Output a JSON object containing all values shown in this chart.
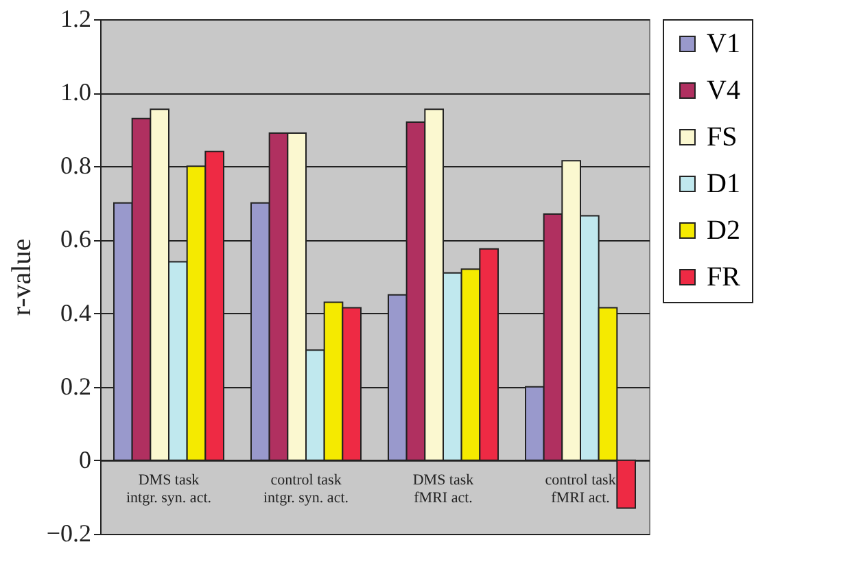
{
  "chart_data": {
    "type": "bar",
    "ylabel": "r-value",
    "categories": [
      "DMS task\nintgr. syn. act.",
      "control task\nintgr. syn. act.",
      "DMS task\nfMRI act.",
      "control task\nfMRI act."
    ],
    "series": [
      {
        "name": "V1",
        "color": "#9999cc",
        "values": [
          0.7,
          0.7,
          0.45,
          0.2
        ]
      },
      {
        "name": "V4",
        "color": "#b03060",
        "values": [
          0.93,
          0.89,
          0.92,
          0.67
        ]
      },
      {
        "name": "FS",
        "color": "#fbf8d0",
        "values": [
          0.955,
          0.89,
          0.955,
          0.815
        ]
      },
      {
        "name": "D1",
        "color": "#c0e8ee",
        "values": [
          0.54,
          0.3,
          0.51,
          0.665
        ]
      },
      {
        "name": "D2",
        "color": "#f5ea00",
        "values": [
          0.8,
          0.43,
          0.52,
          0.415
        ]
      },
      {
        "name": "FR",
        "color": "#ee2a44",
        "values": [
          0.84,
          0.415,
          0.575,
          -0.13
        ]
      }
    ],
    "ylim": [
      -0.2,
      1.2
    ],
    "yticks": [
      {
        "value": -0.2,
        "label": "−0.2"
      },
      0,
      0.2,
      0.4,
      0.6,
      0.8,
      {
        "value": 1,
        "label": "1.0"
      },
      1.2
    ],
    "grid": "y",
    "legend": "right"
  }
}
